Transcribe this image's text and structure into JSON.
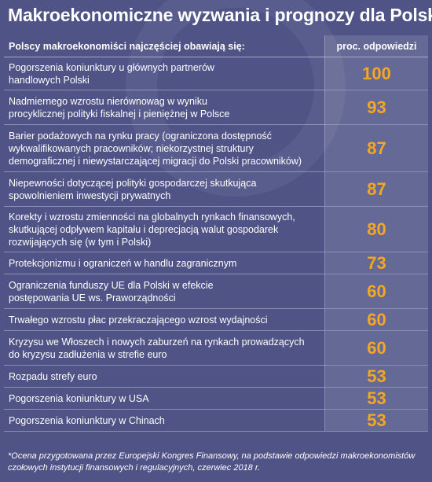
{
  "title": "Makroekonomiczne wyzwania i prognozy dla Polski*",
  "chart_data": {
    "type": "table",
    "columns": [
      "Polscy makroekonomiści najczęściej obawiają się:",
      "proc. odpowiedzi"
    ],
    "rows": [
      {
        "label": "Pogorszenia koniunktury u głównych partnerów handlowych Polski",
        "lines": [
          "Pogorszenia koniunktury u głównych partnerów",
          "handlowych Polski"
        ],
        "value": 100
      },
      {
        "label": "Nadmiernego wzrostu nierównowag w wyniku procyklicznej polityki fiskalnej i pieniężnej w Polsce",
        "lines": [
          "Nadmiernego wzrostu nierównowag w wyniku",
          "procyklicznej polityki fiskalnej i pieniężnej w Polsce"
        ],
        "value": 93
      },
      {
        "label": "Barier podażowych na rynku pracy (ograniczona dostępność wykwalifikowanych pracowników; niekorzystnej struktury demograficznej i niewystarczającej migracji do Polski pracowników)",
        "lines": [
          "Barier podażowych na rynku pracy (ograniczona dostępność",
          "wykwalifikowanych pracowników; niekorzystnej struktury",
          "demograficznej i niewystarczającej migracji do Polski pracowników)"
        ],
        "value": 87
      },
      {
        "label": "Niepewności dotyczącej polityki gospodarczej skutkująca spowolnieniem inwestycji prywatnych",
        "lines": [
          "Niepewności dotyczącej polityki gospodarczej skutkująca",
          "spowolnieniem  inwestycji prywatnych"
        ],
        "value": 87
      },
      {
        "label": "Korekty i wzrostu zmienności na globalnych rynkach finansowych, skutkującej odpływem kapitału i deprecjacją walut gospodarek rozwijających się (w tym i Polski)",
        "lines": [
          "Korekty i wzrostu zmienności na globalnych rynkach finansowych,",
          "skutkującej odpływem kapitału i deprecjacją walut gospodarek",
          "rozwijających się (w tym i Polski)"
        ],
        "value": 80
      },
      {
        "label": "Protekcjonizmu i ograniczeń w handlu zagranicznym",
        "lines": [
          "Protekcjonizmu i ograniczeń w handlu zagranicznym"
        ],
        "value": 73
      },
      {
        "label": "Ograniczenia funduszy UE dla Polski w efekcie postępowania UE ws. Praworządności",
        "lines": [
          "Ograniczenia funduszy UE dla Polski w efekcie",
          "postępowania UE ws. Praworządności"
        ],
        "value": 60
      },
      {
        "label": "Trwałego wzrostu płac przekraczającego wzrost wydajności",
        "lines": [
          "Trwałego wzrostu płac przekraczającego wzrost wydajności"
        ],
        "value": 60
      },
      {
        "label": "Kryzysu we Włoszech i nowych zaburzeń na rynkach prowadzących do kryzysu zadłużenia w strefie euro",
        "lines": [
          "Kryzysu we Włoszech i nowych zaburzeń na rynkach prowadzących",
          "do kryzysu zadłużenia w strefie euro"
        ],
        "value": 60
      },
      {
        "label": "Rozpadu strefy euro",
        "lines": [
          "Rozpadu strefy euro"
        ],
        "value": 53
      },
      {
        "label": "Pogorszenia koniunktury w USA",
        "lines": [
          "Pogorszenia koniunktury w USA"
        ],
        "value": 53
      },
      {
        "label": "Pogorszenia koniunktury w Chinach",
        "lines": [
          "Pogorszenia koniunktury w Chinach"
        ],
        "value": 53
      }
    ]
  },
  "footnote": {
    "line1": "*Ocena przygotowana przez Europejski Kongres Finansowy, na podstawie odpowiedzi makroekonomistów",
    "line2": "czołowych instytucji finansowych i regulacyjnych, czerwiec 2018 r."
  },
  "colors": {
    "background": "#4f5386",
    "value": "#f5a623",
    "text": "#ffffff"
  }
}
